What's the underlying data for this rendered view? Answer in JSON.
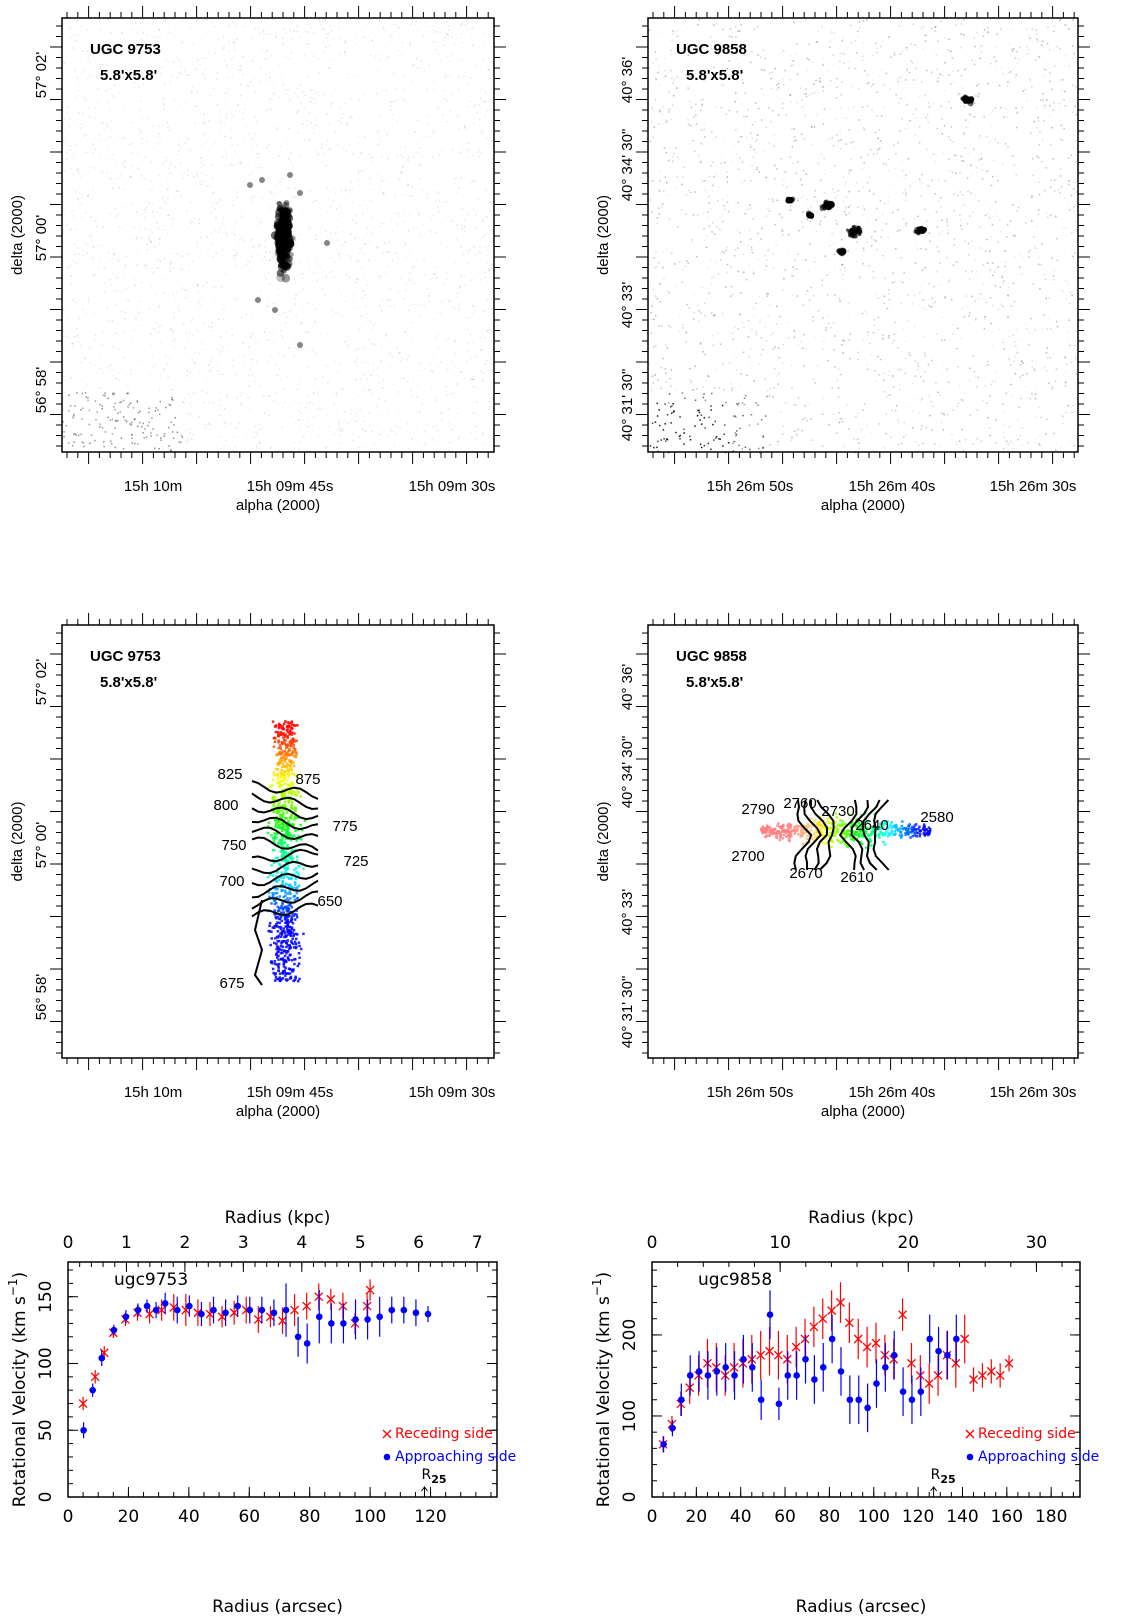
{
  "images": [
    {
      "title": "UGC 9753",
      "size": "5.8'x5.8'",
      "yticks": [
        "57° 02'",
        "57° 00'",
        "56° 58'"
      ],
      "xticks": [
        "15h 10m",
        "15h 09m 45s",
        "15h 09m 30s"
      ],
      "xlabel": "alpha (2000)",
      "ylabel": "delta (2000)"
    },
    {
      "title": "UGC 9858",
      "size": "5.8'x5.8'",
      "yticks": [
        "40° 36'",
        "40° 34' 30\"",
        "40° 33'",
        "40° 31' 30\""
      ],
      "xticks": [
        "15h 26m 50s",
        "15h 26m 40s",
        "15h 26m 30s"
      ],
      "xlabel": "alpha (2000)",
      "ylabel": "delta (2000)"
    },
    {
      "title": "UGC 9753",
      "size": "5.8'x5.8'",
      "yticks": [
        "57° 02'",
        "57° 00'",
        "56° 58'"
      ],
      "xticks": [
        "15h 10m",
        "15h 09m 45s",
        "15h 09m 30s"
      ],
      "xlabel": "alpha (2000)",
      "ylabel": "delta (2000)",
      "contours": [
        825,
        875,
        800,
        775,
        750,
        725,
        700,
        650,
        675
      ]
    },
    {
      "title": "UGC 9858",
      "size": "5.8'x5.8'",
      "yticks": [
        "40° 36'",
        "40° 34' 30\"",
        "40° 33'",
        "40° 31' 30\""
      ],
      "xticks": [
        "15h 26m 50s",
        "15h 26m 40s",
        "15h 26m 30s"
      ],
      "xlabel": "alpha (2000)",
      "ylabel": "delta (2000)",
      "contours": [
        2760,
        2730,
        2790,
        2640,
        2580,
        2700,
        2670,
        2610
      ]
    }
  ],
  "chart_data": [
    {
      "type": "scatter",
      "title": "ugc9753",
      "xlabel": "Radius  (arcsec)",
      "x2label": "Radius  (kpc)",
      "ylabel": "Rotational Velocity  (km s",
      "ylabel_sup": "−1",
      "ylabel_end": ")",
      "xlim": [
        0,
        142
      ],
      "xticks": [
        0,
        20,
        40,
        60,
        80,
        100,
        120
      ],
      "x2lim": [
        0,
        7.34
      ],
      "x2ticks": [
        0,
        1,
        2,
        3,
        4,
        5,
        6,
        7
      ],
      "ylim": [
        0,
        176
      ],
      "yticks": [
        0,
        50,
        100,
        150
      ],
      "legend": "lower right",
      "r25": {
        "value": 118,
        "label": "R",
        "sub": "25"
      },
      "series": [
        {
          "name": "Receding side",
          "color": "#ff0000",
          "marker": "x",
          "x": [
            5,
            9,
            12,
            15,
            19,
            23,
            27,
            31,
            35,
            39,
            43,
            47,
            51,
            55,
            59,
            63,
            67,
            71,
            75,
            79,
            83,
            87,
            91,
            95,
            99,
            100
          ],
          "values": [
            70,
            90,
            108,
            123,
            133,
            138,
            137,
            140,
            142,
            140,
            138,
            137,
            135,
            138,
            140,
            133,
            135,
            132,
            140,
            143,
            150,
            148,
            143,
            130,
            143,
            155
          ],
          "errors": [
            5,
            5,
            5,
            4,
            5,
            6,
            7,
            8,
            10,
            12,
            10,
            9,
            8,
            9,
            10,
            10,
            8,
            10,
            12,
            10,
            10,
            8,
            10,
            8,
            10,
            8
          ]
        },
        {
          "name": "Approaching side",
          "color": "#0000ff",
          "marker": "dot",
          "x": [
            5,
            8,
            11,
            15,
            19,
            23,
            26,
            29,
            32,
            36,
            40,
            44,
            48,
            52,
            56,
            60,
            64,
            68,
            72,
            76,
            79,
            83,
            87,
            91,
            95,
            99,
            103,
            107,
            111,
            115,
            119
          ],
          "values": [
            50,
            80,
            104,
            125,
            135,
            140,
            143,
            140,
            145,
            140,
            143,
            137,
            140,
            138,
            143,
            140,
            140,
            138,
            140,
            120,
            115,
            135,
            130,
            130,
            133,
            133,
            135,
            140,
            140,
            138,
            137
          ],
          "errors": [
            6,
            5,
            6,
            4,
            5,
            5,
            5,
            6,
            8,
            10,
            8,
            9,
            10,
            10,
            8,
            10,
            10,
            10,
            20,
            15,
            15,
            20,
            15,
            15,
            15,
            15,
            15,
            10,
            10,
            10,
            6
          ]
        }
      ]
    },
    {
      "type": "scatter",
      "title": "ugc9858",
      "xlabel": "Radius  (arcsec)",
      "x2label": "Radius  (kpc)",
      "ylabel": "Rotational Velocity  (km s",
      "ylabel_sup": "−1",
      "ylabel_end": ")",
      "xlim": [
        0,
        193
      ],
      "xticks": [
        0,
        20,
        40,
        60,
        80,
        100,
        120,
        140,
        160,
        180
      ],
      "x2lim": [
        0,
        33.4
      ],
      "x2ticks": [
        0,
        10,
        20,
        30
      ],
      "ylim": [
        0,
        290
      ],
      "yticks": [
        0,
        100,
        200
      ],
      "legend": "lower right",
      "r25": {
        "value": 127,
        "label": "R",
        "sub": "25"
      },
      "series": [
        {
          "name": "Receding side",
          "color": "#ff0000",
          "marker": "x",
          "x": [
            5,
            9,
            13,
            17,
            21,
            25,
            29,
            33,
            37,
            41,
            45,
            49,
            53,
            57,
            61,
            65,
            69,
            73,
            77,
            81,
            85,
            89,
            93,
            97,
            101,
            105,
            109,
            113,
            117,
            121,
            125,
            129,
            133,
            137,
            141,
            145,
            149,
            153,
            157,
            161
          ],
          "values": [
            65,
            90,
            115,
            135,
            150,
            165,
            160,
            150,
            160,
            165,
            170,
            175,
            180,
            175,
            170,
            185,
            195,
            210,
            220,
            230,
            240,
            215,
            195,
            185,
            190,
            175,
            170,
            225,
            165,
            150,
            140,
            150,
            175,
            165,
            195,
            145,
            150,
            155,
            150,
            165
          ],
          "errors": [
            10,
            10,
            15,
            20,
            25,
            30,
            30,
            25,
            30,
            30,
            30,
            30,
            30,
            30,
            30,
            25,
            25,
            25,
            25,
            25,
            25,
            25,
            25,
            25,
            25,
            25,
            25,
            20,
            25,
            25,
            25,
            25,
            30,
            30,
            30,
            15,
            15,
            15,
            15,
            10
          ]
        },
        {
          "name": "Approaching side",
          "color": "#0000ff",
          "marker": "dot",
          "x": [
            5,
            9,
            13,
            17,
            21,
            25,
            29,
            33,
            37,
            41,
            45,
            49,
            53,
            57,
            61,
            65,
            69,
            73,
            77,
            81,
            85,
            89,
            93,
            97,
            101,
            105,
            109,
            113,
            117,
            121,
            125,
            129,
            133,
            137
          ],
          "values": [
            65,
            85,
            120,
            150,
            155,
            150,
            155,
            160,
            150,
            170,
            160,
            120,
            225,
            115,
            150,
            150,
            170,
            145,
            160,
            195,
            155,
            120,
            120,
            110,
            140,
            160,
            175,
            130,
            120,
            130,
            195,
            180,
            175,
            195
          ],
          "errors": [
            10,
            10,
            20,
            25,
            25,
            30,
            30,
            30,
            30,
            30,
            30,
            25,
            30,
            20,
            30,
            30,
            30,
            30,
            30,
            30,
            30,
            30,
            30,
            30,
            30,
            30,
            30,
            30,
            30,
            30,
            30,
            30,
            30,
            30
          ]
        }
      ]
    }
  ]
}
